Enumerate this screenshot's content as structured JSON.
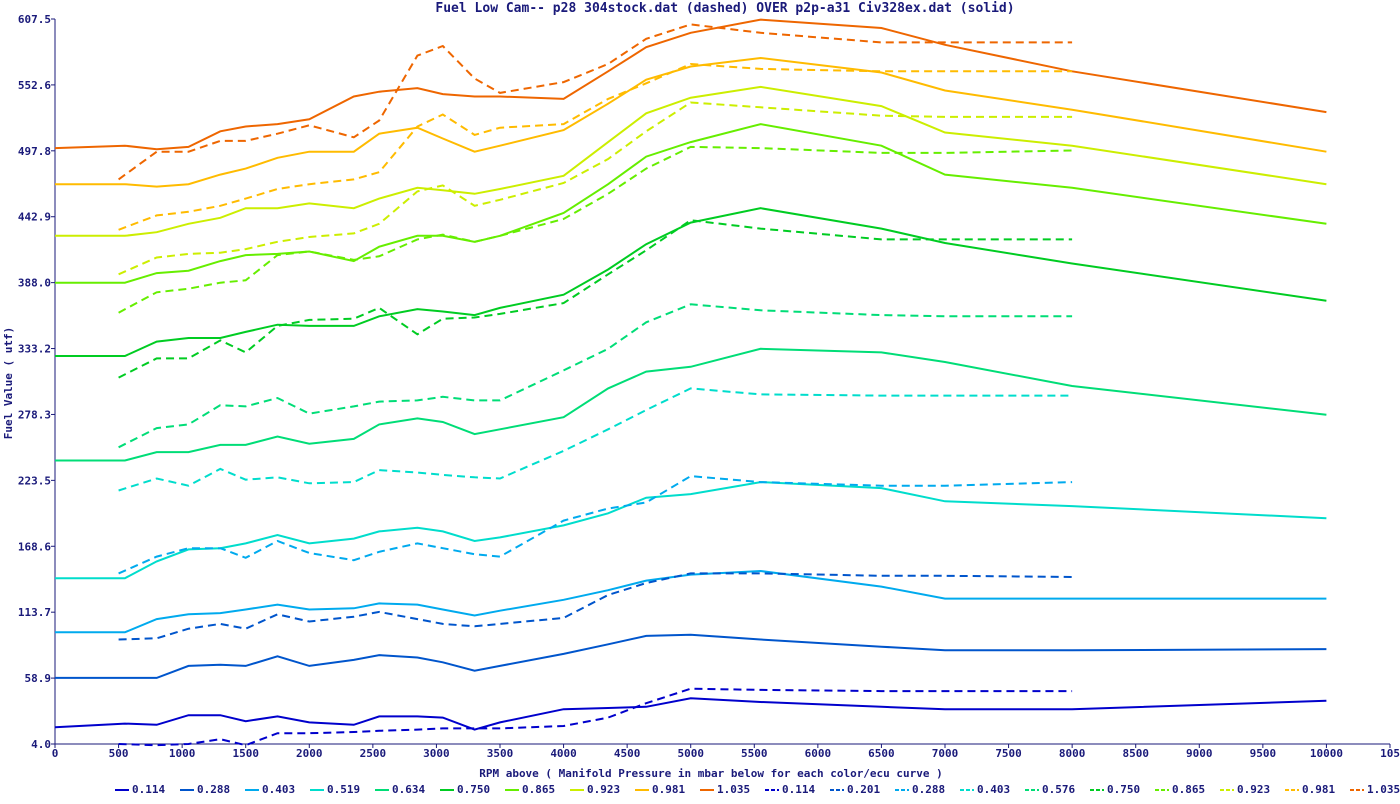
{
  "chart_data": {
    "type": "line",
    "title": "Fuel Low Cam-- p28 304stock.dat (dashed) OVER p2p-a31 Civ328ex.dat (solid)",
    "xlabel": "RPM above ( Manifold Pressure in mbar below for each color/ecu curve )",
    "ylabel": "Fuel Value ( utf)",
    "xlim": [
      0,
      10500
    ],
    "ylim": [
      4.0,
      607.5
    ],
    "x_ticks": [
      "0",
      "500",
      "1000",
      "1500",
      "2000",
      "2500",
      "3000",
      "3500",
      "4000",
      "4500",
      "5000",
      "5500",
      "6000",
      "6500",
      "7000",
      "7500",
      "8000",
      "8500",
      "9000",
      "9500",
      "10000",
      "105"
    ],
    "y_ticks": [
      "4.0",
      "58.9",
      "113.7",
      "168.6",
      "223.5",
      "278.3",
      "333.2",
      "388.0",
      "442.9",
      "497.8",
      "552.6",
      "607.5"
    ],
    "grid": false,
    "legend_position": "bottom",
    "solid_series": [
      {
        "name": "0.114",
        "color": "#0000cc",
        "x": [
          0,
          550,
          800,
          1050,
          1300,
          1500,
          1750,
          2000,
          2350,
          2550,
          2850,
          3050,
          3300,
          3500,
          4000,
          4350,
          4650,
          5000,
          5550,
          6500,
          7000,
          8000,
          10000
        ],
        "y": [
          18,
          21,
          20,
          28,
          28,
          23,
          27,
          22,
          20,
          27,
          27,
          26,
          16,
          22,
          33,
          34,
          35,
          42,
          39,
          35,
          33,
          33,
          40
        ]
      },
      {
        "name": "0.288",
        "color": "#0055cc",
        "x": [
          0,
          550,
          800,
          1050,
          1300,
          1500,
          1750,
          2000,
          2350,
          2550,
          2850,
          3050,
          3300,
          3500,
          4000,
          4350,
          4650,
          5000,
          5550,
          6500,
          7000,
          8000,
          10000
        ],
        "y": [
          59,
          59,
          59,
          69,
          70,
          69,
          77,
          69,
          74,
          78,
          76,
          72,
          65,
          69,
          79,
          87,
          94,
          95,
          91,
          85,
          82,
          82,
          83
        ]
      },
      {
        "name": "0.403",
        "color": "#00aaee",
        "x": [
          0,
          550,
          800,
          1050,
          1300,
          1500,
          1750,
          2000,
          2350,
          2550,
          2850,
          3050,
          3300,
          3500,
          4000,
          4350,
          4650,
          5000,
          5550,
          6500,
          7000,
          8000,
          10000
        ],
        "y": [
          97,
          97,
          108,
          112,
          113,
          116,
          120,
          116,
          117,
          121,
          120,
          116,
          111,
          115,
          124,
          132,
          140,
          145,
          148,
          135,
          125,
          125,
          125
        ]
      },
      {
        "name": "0.519",
        "color": "#00ddcc",
        "x": [
          0,
          550,
          800,
          1050,
          1300,
          1500,
          1750,
          2000,
          2350,
          2550,
          2850,
          3050,
          3300,
          3500,
          4000,
          4350,
          4650,
          5000,
          5550,
          6500,
          7000,
          8000,
          10000
        ],
        "y": [
          142,
          142,
          156,
          166,
          167,
          171,
          178,
          171,
          175,
          181,
          184,
          181,
          173,
          176,
          186,
          196,
          209,
          212,
          222,
          217,
          206,
          202,
          192
        ]
      },
      {
        "name": "0.634",
        "color": "#00dd77",
        "x": [
          0,
          550,
          800,
          1050,
          1300,
          1500,
          1750,
          2000,
          2350,
          2550,
          2850,
          3050,
          3300,
          3500,
          4000,
          4350,
          4650,
          5000,
          5550,
          6500,
          7000,
          8000,
          10000
        ],
        "y": [
          240,
          240,
          247,
          247,
          253,
          253,
          260,
          254,
          258,
          270,
          275,
          272,
          262,
          266,
          276,
          300,
          314,
          318,
          333,
          330,
          322,
          302,
          278
        ]
      },
      {
        "name": "0.750",
        "color": "#00cc22",
        "x": [
          0,
          550,
          800,
          1050,
          1300,
          1500,
          1750,
          2000,
          2350,
          2550,
          2850,
          3050,
          3300,
          3500,
          4000,
          4350,
          4650,
          5000,
          5550,
          6500,
          7000,
          8000,
          10000
        ],
        "y": [
          327,
          327,
          339,
          342,
          342,
          347,
          353,
          352,
          352,
          360,
          366,
          364,
          361,
          367,
          378,
          399,
          420,
          438,
          450,
          433,
          421,
          404,
          373
        ]
      },
      {
        "name": "0.865",
        "color": "#66ee00",
        "x": [
          0,
          550,
          800,
          1050,
          1300,
          1500,
          1750,
          2000,
          2350,
          2550,
          2850,
          3050,
          3300,
          3500,
          4000,
          4350,
          4650,
          5000,
          5550,
          6500,
          7000,
          8000,
          10000
        ],
        "y": [
          388,
          388,
          396,
          398,
          406,
          411,
          412,
          414,
          406,
          418,
          427,
          427,
          422,
          427,
          446,
          470,
          493,
          505,
          520,
          502,
          478,
          467,
          437
        ]
      },
      {
        "name": "0.923",
        "color": "#ccee00",
        "x": [
          0,
          550,
          800,
          1050,
          1300,
          1500,
          1750,
          2000,
          2350,
          2550,
          2850,
          3050,
          3300,
          3500,
          4000,
          4350,
          4650,
          5000,
          5550,
          6500,
          7000,
          8000,
          10000
        ],
        "y": [
          427,
          427,
          430,
          437,
          442,
          450,
          450,
          454,
          450,
          458,
          467,
          465,
          462,
          466,
          477,
          505,
          529,
          542,
          551,
          535,
          513,
          502,
          470
        ]
      },
      {
        "name": "0.981",
        "color": "#ffbb00",
        "x": [
          0,
          550,
          800,
          1050,
          1300,
          1500,
          1750,
          2000,
          2350,
          2550,
          2850,
          3050,
          3300,
          3500,
          4000,
          4350,
          4650,
          5000,
          5550,
          6500,
          7000,
          8000,
          10000
        ],
        "y": [
          470,
          470,
          468,
          470,
          478,
          483,
          492,
          497,
          497,
          512,
          517,
          508,
          497,
          502,
          515,
          537,
          557,
          568,
          575,
          563,
          548,
          532,
          497
        ]
      },
      {
        "name": "1.035",
        "color": "#ee6600",
        "x": [
          0,
          550,
          800,
          1050,
          1300,
          1500,
          1750,
          2000,
          2350,
          2550,
          2850,
          3050,
          3300,
          3500,
          4000,
          4350,
          4650,
          5000,
          5550,
          6500,
          7000,
          8000,
          10000
        ],
        "y": [
          500,
          502,
          499,
          501,
          514,
          518,
          520,
          524,
          543,
          547,
          550,
          545,
          543,
          543,
          541,
          564,
          584,
          596,
          607,
          600,
          586,
          564,
          530
        ]
      }
    ],
    "dashed_series": [
      {
        "name": "0.114",
        "color": "#0000cc",
        "x": [
          500,
          800,
          1050,
          1300,
          1500,
          1750,
          2000,
          2350,
          2550,
          2850,
          3050,
          3300,
          3500,
          4000,
          4350,
          4650,
          5000,
          5550,
          6500,
          7000,
          8000
        ],
        "y": [
          4,
          3,
          4,
          8,
          3,
          13,
          13,
          14,
          15,
          16,
          17,
          17,
          17,
          19,
          26,
          38,
          50,
          49,
          48,
          48,
          48
        ]
      },
      {
        "name": "0.201",
        "color": "#0055cc",
        "x": [
          500,
          800,
          1050,
          1300,
          1500,
          1750,
          2000,
          2350,
          2550,
          2850,
          3050,
          3300,
          3500,
          4000,
          4350,
          4650,
          5000,
          5550,
          6500,
          7000,
          8000
        ],
        "y": [
          91,
          92,
          100,
          104,
          100,
          112,
          106,
          110,
          114,
          108,
          104,
          102,
          104,
          109,
          128,
          138,
          146,
          146,
          144,
          144,
          143
        ]
      },
      {
        "name": "0.288",
        "color": "#00aaee",
        "x": [
          500,
          800,
          1050,
          1300,
          1500,
          1750,
          2000,
          2350,
          2550,
          2850,
          3050,
          3300,
          3500,
          4000,
          4350,
          4650,
          5000,
          5550,
          6500,
          7000,
          8000
        ],
        "y": [
          146,
          160,
          167,
          167,
          159,
          173,
          163,
          157,
          164,
          171,
          167,
          162,
          160,
          190,
          200,
          205,
          227,
          222,
          219,
          219,
          222
        ]
      },
      {
        "name": "0.403",
        "color": "#00ddcc",
        "x": [
          500,
          800,
          1050,
          1300,
          1500,
          1750,
          2000,
          2350,
          2550,
          2850,
          3050,
          3300,
          3500,
          4000,
          4350,
          4650,
          5000,
          5550,
          6500,
          7000,
          8000
        ],
        "y": [
          215,
          225,
          219,
          233,
          224,
          226,
          221,
          222,
          232,
          230,
          228,
          226,
          225,
          248,
          266,
          282,
          300,
          295,
          294,
          294,
          294
        ]
      },
      {
        "name": "0.576",
        "color": "#00dd77",
        "x": [
          500,
          800,
          1050,
          1300,
          1500,
          1750,
          2000,
          2350,
          2550,
          2850,
          3050,
          3300,
          3500,
          4000,
          4350,
          4650,
          5000,
          5550,
          6500,
          7000,
          8000
        ],
        "y": [
          251,
          267,
          270,
          286,
          285,
          292,
          279,
          285,
          289,
          290,
          293,
          290,
          290,
          315,
          333,
          355,
          370,
          365,
          361,
          360,
          360
        ]
      },
      {
        "name": "0.750",
        "color": "#00cc22",
        "x": [
          500,
          800,
          1050,
          1300,
          1500,
          1750,
          2000,
          2350,
          2550,
          2850,
          3050,
          3300,
          3500,
          4000,
          4350,
          4650,
          5000,
          5550,
          6500,
          7000,
          8000
        ],
        "y": [
          309,
          325,
          325,
          340,
          330,
          352,
          357,
          358,
          367,
          345,
          358,
          359,
          362,
          371,
          395,
          415,
          440,
          433,
          424,
          424,
          424
        ]
      },
      {
        "name": "0.865",
        "color": "#66ee00",
        "x": [
          500,
          800,
          1050,
          1300,
          1500,
          1750,
          2000,
          2350,
          2550,
          2850,
          3050,
          3300,
          3500,
          4000,
          4350,
          4650,
          5000,
          5550,
          6500,
          7000,
          8000
        ],
        "y": [
          363,
          380,
          383,
          388,
          390,
          411,
          414,
          407,
          410,
          424,
          428,
          422,
          427,
          441,
          462,
          483,
          501,
          500,
          496,
          496,
          498
        ]
      },
      {
        "name": "0.923",
        "color": "#ccee00",
        "x": [
          500,
          800,
          1050,
          1300,
          1500,
          1750,
          2000,
          2350,
          2550,
          2850,
          3050,
          3300,
          3500,
          4000,
          4350,
          4650,
          5000,
          5550,
          6500,
          7000,
          8000
        ],
        "y": [
          395,
          409,
          412,
          413,
          416,
          422,
          426,
          429,
          437,
          464,
          469,
          452,
          457,
          471,
          491,
          514,
          538,
          534,
          527,
          526,
          526
        ]
      },
      {
        "name": "0.981",
        "color": "#ffbb00",
        "x": [
          500,
          800,
          1050,
          1300,
          1500,
          1750,
          2000,
          2350,
          2550,
          2850,
          3050,
          3300,
          3500,
          4000,
          4350,
          4650,
          5000,
          5550,
          6500,
          7000,
          8000
        ],
        "y": [
          432,
          444,
          447,
          452,
          458,
          466,
          470,
          474,
          480,
          518,
          528,
          511,
          517,
          520,
          541,
          554,
          570,
          566,
          564,
          564,
          564
        ]
      },
      {
        "name": "1.035",
        "color": "#ee6600",
        "x": [
          500,
          800,
          1050,
          1300,
          1500,
          1750,
          2000,
          2350,
          2550,
          2850,
          3050,
          3300,
          3500,
          4000,
          4350,
          4650,
          5000,
          5550,
          6500,
          7000,
          8000
        ],
        "y": [
          474,
          497,
          497,
          506,
          506,
          512,
          519,
          509,
          523,
          577,
          585,
          558,
          546,
          555,
          570,
          591,
          603,
          596,
          588,
          588,
          588
        ]
      }
    ],
    "legend": [
      {
        "label": "0.114",
        "color": "#0000cc",
        "style": "solid"
      },
      {
        "label": "0.288",
        "color": "#0055cc",
        "style": "solid"
      },
      {
        "label": "0.403",
        "color": "#00aaee",
        "style": "solid"
      },
      {
        "label": "0.519",
        "color": "#00ddcc",
        "style": "solid"
      },
      {
        "label": "0.634",
        "color": "#00dd77",
        "style": "solid"
      },
      {
        "label": "0.750",
        "color": "#00cc22",
        "style": "solid"
      },
      {
        "label": "0.865",
        "color": "#66ee00",
        "style": "solid"
      },
      {
        "label": "0.923",
        "color": "#ccee00",
        "style": "solid"
      },
      {
        "label": "0.981",
        "color": "#ffbb00",
        "style": "solid"
      },
      {
        "label": "1.035",
        "color": "#ee6600",
        "style": "solid"
      },
      {
        "label": "0.114",
        "color": "#0000cc",
        "style": "dashed"
      },
      {
        "label": "0.201",
        "color": "#0055cc",
        "style": "dashed"
      },
      {
        "label": "0.288",
        "color": "#00aaee",
        "style": "dashed"
      },
      {
        "label": "0.403",
        "color": "#00ddcc",
        "style": "dashed"
      },
      {
        "label": "0.576",
        "color": "#00dd77",
        "style": "dashed"
      },
      {
        "label": "0.750",
        "color": "#00cc22",
        "style": "dashed"
      },
      {
        "label": "0.865",
        "color": "#66ee00",
        "style": "dashed"
      },
      {
        "label": "0.923",
        "color": "#ccee00",
        "style": "dashed"
      },
      {
        "label": "0.981",
        "color": "#ffbb00",
        "style": "dashed"
      },
      {
        "label": "1.035",
        "color": "#ee6600",
        "style": "dashed"
      }
    ]
  }
}
